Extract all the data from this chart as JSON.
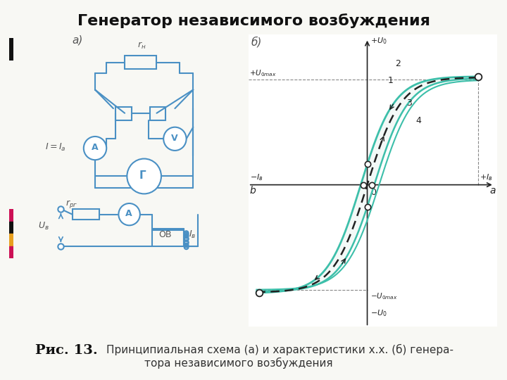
{
  "title": "Генератор независимого возбуждения",
  "title_fontsize": 16,
  "title_fontweight": "bold",
  "bg_color": "#f8f8f4",
  "caption_bold": "Рис. 13.",
  "caption_line1": "Принципиальная схема (а) и характеристики х.х. (б) генера-",
  "caption_line2": "тора независимого возбуждения",
  "caption_bold_fontsize": 14,
  "caption_text_fontsize": 11,
  "bc": "#4a90c4",
  "tc": "#3dbfaa",
  "dark": "#222222",
  "gray": "#555555"
}
